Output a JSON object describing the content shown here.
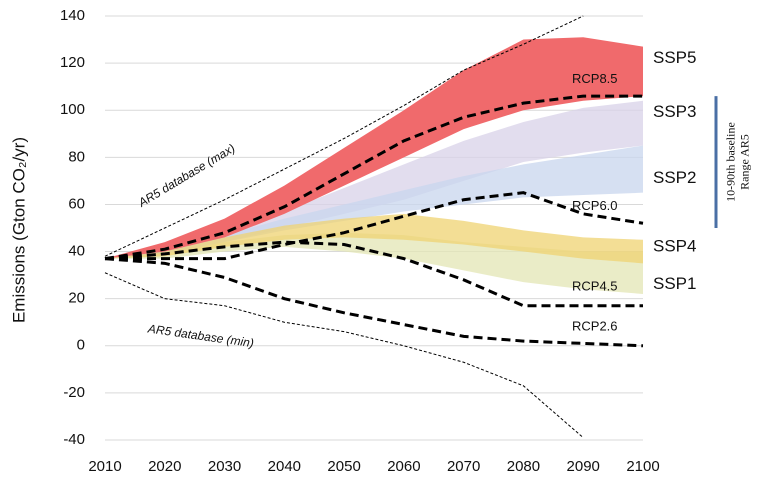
{
  "chart_data": {
    "type": "line",
    "y_label": "Emissions (Gton CO₂/yr)",
    "x": [
      2010,
      2020,
      2030,
      2040,
      2050,
      2060,
      2070,
      2080,
      2090,
      2100
    ],
    "xlim": [
      2010,
      2100
    ],
    "xticks": [
      2010,
      2020,
      2030,
      2040,
      2050,
      2060,
      2070,
      2080,
      2090,
      2100
    ],
    "ylim": [
      -40,
      140
    ],
    "yticks": [
      -40,
      -20,
      0,
      20,
      40,
      60,
      80,
      100,
      120,
      140
    ],
    "grid": true,
    "bands": [
      {
        "name": "SSP3",
        "color": "#d8d1e8",
        "lower": [
          37,
          39,
          44,
          50,
          56,
          62,
          70,
          78,
          82,
          85
        ],
        "upper": [
          37,
          41,
          48,
          57,
          67,
          77,
          87,
          95,
          101,
          104
        ]
      },
      {
        "name": "SSP2",
        "color": "#c8d5ee",
        "lower": [
          37,
          39,
          44,
          49,
          53,
          57,
          60,
          63,
          64,
          65
        ],
        "upper": [
          37,
          41,
          47,
          54,
          60,
          66,
          72,
          77,
          81,
          85
        ]
      },
      {
        "name": "SSP1",
        "color": "#e3e6b4",
        "lower": [
          37,
          37,
          40,
          42,
          40,
          37,
          32,
          27,
          24,
          22
        ],
        "upper": [
          37,
          39,
          44,
          47,
          48,
          47,
          44,
          42,
          40,
          40
        ]
      },
      {
        "name": "SSP4",
        "color": "#efd372",
        "lower": [
          37,
          38,
          42,
          45,
          46,
          45,
          43,
          40,
          37,
          35
        ],
        "upper": [
          37,
          40,
          46,
          51,
          54,
          56,
          53,
          49,
          46,
          45
        ]
      },
      {
        "name": "SSP5",
        "color": "#f06a6c",
        "lower": [
          37,
          40,
          46,
          56,
          68,
          80,
          92,
          100,
          104,
          106
        ],
        "upper": [
          37,
          44,
          54,
          68,
          84,
          100,
          117,
          130,
          131,
          127
        ]
      }
    ],
    "series": [
      {
        "name": "RCP8.5",
        "color": "#000000",
        "values": [
          37,
          41,
          48,
          59,
          73,
          87,
          97,
          103,
          106,
          106
        ]
      },
      {
        "name": "RCP6.0",
        "color": "#000000",
        "values": [
          37,
          37,
          37,
          43,
          48,
          55,
          62,
          65,
          56,
          52
        ]
      },
      {
        "name": "RCP4.5",
        "color": "#000000",
        "values": [
          37,
          39,
          42,
          44,
          43,
          37,
          28,
          17,
          17,
          17
        ]
      },
      {
        "name": "RCP2.6",
        "color": "#000000",
        "values": [
          37,
          35,
          29,
          20,
          14,
          9,
          4,
          2,
          1,
          0
        ]
      },
      {
        "name": "AR5 database (max)",
        "color": "#000000",
        "values": [
          38,
          50,
          62,
          75,
          88,
          102,
          117,
          128,
          140,
          null
        ]
      },
      {
        "name": "AR5 database (min)",
        "color": "#000000",
        "values": [
          31,
          20,
          17,
          10,
          6,
          0,
          -7,
          -17,
          -39,
          null
        ]
      }
    ],
    "range_bar": {
      "labels": [
        "10-90th baseline",
        "Range AR5"
      ],
      "values": [
        50,
        106
      ],
      "color": "#4a6fa5"
    }
  }
}
